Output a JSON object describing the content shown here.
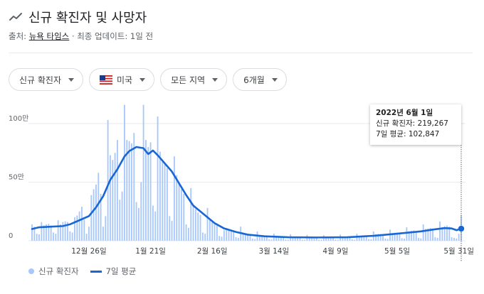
{
  "header": {
    "title": "신규 확진자 및 사망자",
    "source_prefix": "출처:",
    "source_name": "뉴욕 타임스",
    "source_suffix": " · 최종 업데이트: 1일 전"
  },
  "filters": [
    {
      "label": "신규 확진자"
    },
    {
      "label": "미국",
      "icon": "us-flag-icon"
    },
    {
      "label": "모든 지역"
    },
    {
      "label": "6개월"
    }
  ],
  "tooltip": {
    "date": "2022년 6월 1일",
    "cases": "신규 확진자: 219,267",
    "avg": "7일 평균: 102,847"
  },
  "legend": {
    "bars": "신규 확진자",
    "line": "7일 평균"
  },
  "colors": {
    "bar": "#a8c7fa",
    "line": "#1967d2",
    "grid": "#e8eaed"
  },
  "chart_data": {
    "type": "bar",
    "title": "신규 확진자 및 사망자",
    "y_ticks": [
      {
        "value": 0,
        "label": "0"
      },
      {
        "value": 500000,
        "label": "50만"
      },
      {
        "value": 1000000,
        "label": "100만"
      }
    ],
    "ylim": [
      0,
      1100000
    ],
    "x_range": [
      "2021-12-02",
      "2022-06-01"
    ],
    "x_ticks": [
      {
        "date": "2021-12-26",
        "label": "12월 26일"
      },
      {
        "date": "2022-01-21",
        "label": "1월 21일"
      },
      {
        "date": "2022-02-16",
        "label": "2월 16일"
      },
      {
        "date": "2022-03-14",
        "label": "3월 14일"
      },
      {
        "date": "2022-04-09",
        "label": "4월 9일"
      },
      {
        "date": "2022-05-05",
        "label": "5월 5일"
      },
      {
        "date": "2022-05-31",
        "label": "5월 31일"
      }
    ],
    "bar_series_name": "신규 확진자",
    "line_series_name": "7일 평균",
    "line_points": [
      [
        "2021-12-02",
        100000
      ],
      [
        "2021-12-05",
        115000
      ],
      [
        "2021-12-10",
        120000
      ],
      [
        "2021-12-15",
        125000
      ],
      [
        "2021-12-18",
        140000
      ],
      [
        "2021-12-22",
        175000
      ],
      [
        "2021-12-26",
        210000
      ],
      [
        "2021-12-29",
        285000
      ],
      [
        "2022-01-01",
        380000
      ],
      [
        "2022-01-04",
        520000
      ],
      [
        "2022-01-07",
        610000
      ],
      [
        "2022-01-10",
        720000
      ],
      [
        "2022-01-12",
        765000
      ],
      [
        "2022-01-15",
        800000
      ],
      [
        "2022-01-18",
        790000
      ],
      [
        "2022-01-20",
        740000
      ],
      [
        "2022-01-22",
        770000
      ],
      [
        "2022-01-24",
        730000
      ],
      [
        "2022-01-27",
        660000
      ],
      [
        "2022-01-30",
        590000
      ],
      [
        "2022-02-02",
        490000
      ],
      [
        "2022-02-05",
        390000
      ],
      [
        "2022-02-08",
        300000
      ],
      [
        "2022-02-11",
        250000
      ],
      [
        "2022-02-14",
        200000
      ],
      [
        "2022-02-17",
        150000
      ],
      [
        "2022-02-21",
        105000
      ],
      [
        "2022-02-26",
        75000
      ],
      [
        "2022-03-03",
        52000
      ],
      [
        "2022-03-10",
        38000
      ],
      [
        "2022-03-20",
        30000
      ],
      [
        "2022-04-01",
        28000
      ],
      [
        "2022-04-14",
        30000
      ],
      [
        "2022-04-25",
        42000
      ],
      [
        "2022-05-05",
        60000
      ],
      [
        "2022-05-15",
        80000
      ],
      [
        "2022-05-20",
        95000
      ],
      [
        "2022-05-25",
        108000
      ],
      [
        "2022-05-28",
        105000
      ],
      [
        "2022-05-30",
        90000
      ],
      [
        "2022-06-01",
        102847
      ]
    ],
    "bar_points": [
      [
        "2021-12-02",
        140000
      ],
      [
        "2021-12-03",
        120000
      ],
      [
        "2021-12-04",
        60000
      ],
      [
        "2021-12-05",
        55000
      ],
      [
        "2021-12-06",
        160000
      ],
      [
        "2021-12-07",
        130000
      ],
      [
        "2021-12-08",
        140000
      ],
      [
        "2021-12-09",
        145000
      ],
      [
        "2021-12-10",
        130000
      ],
      [
        "2021-12-11",
        70000
      ],
      [
        "2021-12-12",
        60000
      ],
      [
        "2021-12-13",
        175000
      ],
      [
        "2021-12-14",
        140000
      ],
      [
        "2021-12-15",
        160000
      ],
      [
        "2021-12-16",
        165000
      ],
      [
        "2021-12-17",
        160000
      ],
      [
        "2021-12-18",
        80000
      ],
      [
        "2021-12-19",
        70000
      ],
      [
        "2021-12-20",
        200000
      ],
      [
        "2021-12-21",
        215000
      ],
      [
        "2021-12-22",
        250000
      ],
      [
        "2021-12-23",
        290000
      ],
      [
        "2021-12-24",
        180000
      ],
      [
        "2021-12-25",
        60000
      ],
      [
        "2021-12-26",
        120000
      ],
      [
        "2021-12-27",
        390000
      ],
      [
        "2021-12-28",
        440000
      ],
      [
        "2021-12-29",
        480000
      ],
      [
        "2021-12-30",
        580000
      ],
      [
        "2021-12-31",
        400000
      ],
      [
        "2022-01-01",
        120000
      ],
      [
        "2022-01-02",
        210000
      ],
      [
        "2022-01-03",
        1030000
      ],
      [
        "2022-01-04",
        730000
      ],
      [
        "2022-01-05",
        690000
      ],
      [
        "2022-01-06",
        750000
      ],
      [
        "2022-01-07",
        860000
      ],
      [
        "2022-01-08",
        350000
      ],
      [
        "2022-01-09",
        420000
      ],
      [
        "2022-01-10",
        1160000
      ],
      [
        "2022-01-11",
        860000
      ],
      [
        "2022-01-12",
        850000
      ],
      [
        "2022-01-13",
        830000
      ],
      [
        "2022-01-14",
        920000
      ],
      [
        "2022-01-15",
        330000
      ],
      [
        "2022-01-16",
        280000
      ],
      [
        "2022-01-17",
        500000
      ],
      [
        "2022-01-18",
        1160000
      ],
      [
        "2022-01-19",
        860000
      ],
      [
        "2022-01-20",
        800000
      ],
      [
        "2022-01-21",
        840000
      ],
      [
        "2022-01-22",
        300000
      ],
      [
        "2022-01-23",
        250000
      ],
      [
        "2022-01-24",
        1060000
      ],
      [
        "2022-01-25",
        760000
      ],
      [
        "2022-01-26",
        690000
      ],
      [
        "2022-01-27",
        660000
      ],
      [
        "2022-01-28",
        620000
      ],
      [
        "2022-01-29",
        210000
      ],
      [
        "2022-01-30",
        170000
      ],
      [
        "2022-01-31",
        720000
      ],
      [
        "2022-02-01",
        560000
      ],
      [
        "2022-02-02",
        500000
      ],
      [
        "2022-02-03",
        440000
      ],
      [
        "2022-02-04",
        400000
      ],
      [
        "2022-02-05",
        140000
      ],
      [
        "2022-02-06",
        110000
      ],
      [
        "2022-02-07",
        450000
      ],
      [
        "2022-02-08",
        300000
      ],
      [
        "2022-02-09",
        270000
      ],
      [
        "2022-02-10",
        240000
      ],
      [
        "2022-02-11",
        220000
      ],
      [
        "2022-02-12",
        70000
      ],
      [
        "2022-02-13",
        60000
      ],
      [
        "2022-02-14",
        280000
      ],
      [
        "2022-02-15",
        180000
      ],
      [
        "2022-02-16",
        160000
      ],
      [
        "2022-02-17",
        140000
      ],
      [
        "2022-02-18",
        130000
      ],
      [
        "2022-02-19",
        40000
      ],
      [
        "2022-02-20",
        35000
      ],
      [
        "2022-02-21",
        90000
      ],
      [
        "2022-02-22",
        110000
      ],
      [
        "2022-02-23",
        95000
      ],
      [
        "2022-02-24",
        80000
      ],
      [
        "2022-02-25",
        75000
      ],
      [
        "2022-02-26",
        30000
      ],
      [
        "2022-02-27",
        25000
      ],
      [
        "2022-02-28",
        120000
      ],
      [
        "2022-03-01",
        70000
      ],
      [
        "2022-03-02",
        60000
      ],
      [
        "2022-03-03",
        55000
      ],
      [
        "2022-03-04",
        50000
      ],
      [
        "2022-03-05",
        18000
      ],
      [
        "2022-03-06",
        15000
      ],
      [
        "2022-03-07",
        80000
      ],
      [
        "2022-03-08",
        45000
      ],
      [
        "2022-03-09",
        40000
      ],
      [
        "2022-03-10",
        38000
      ],
      [
        "2022-03-11",
        36000
      ],
      [
        "2022-03-12",
        12000
      ],
      [
        "2022-03-13",
        10000
      ],
      [
        "2022-03-14",
        60000
      ],
      [
        "2022-03-15",
        35000
      ],
      [
        "2022-03-16",
        33000
      ],
      [
        "2022-03-17",
        32000
      ],
      [
        "2022-03-18",
        30000
      ],
      [
        "2022-03-19",
        10000
      ],
      [
        "2022-03-20",
        9000
      ],
      [
        "2022-03-21",
        55000
      ],
      [
        "2022-03-22",
        30000
      ],
      [
        "2022-03-23",
        29000
      ],
      [
        "2022-03-24",
        28000
      ],
      [
        "2022-03-25",
        27000
      ],
      [
        "2022-03-26",
        9000
      ],
      [
        "2022-03-27",
        8000
      ],
      [
        "2022-03-28",
        50000
      ],
      [
        "2022-03-29",
        29000
      ],
      [
        "2022-03-30",
        28000
      ],
      [
        "2022-03-31",
        27000
      ],
      [
        "2022-04-01",
        26000
      ],
      [
        "2022-04-02",
        9000
      ],
      [
        "2022-04-03",
        8000
      ],
      [
        "2022-04-04",
        48000
      ],
      [
        "2022-04-05",
        30000
      ],
      [
        "2022-04-06",
        30000
      ],
      [
        "2022-04-07",
        29000
      ],
      [
        "2022-04-08",
        28000
      ],
      [
        "2022-04-09",
        10000
      ],
      [
        "2022-04-10",
        9000
      ],
      [
        "2022-04-11",
        52000
      ],
      [
        "2022-04-12",
        33000
      ],
      [
        "2022-04-13",
        35000
      ],
      [
        "2022-04-14",
        34000
      ],
      [
        "2022-04-15",
        30000
      ],
      [
        "2022-04-16",
        12000
      ],
      [
        "2022-04-17",
        8000
      ],
      [
        "2022-04-18",
        60000
      ],
      [
        "2022-04-19",
        42000
      ],
      [
        "2022-04-20",
        45000
      ],
      [
        "2022-04-21",
        44000
      ],
      [
        "2022-04-22",
        40000
      ],
      [
        "2022-04-23",
        15000
      ],
      [
        "2022-04-24",
        12000
      ],
      [
        "2022-04-25",
        80000
      ],
      [
        "2022-04-26",
        55000
      ],
      [
        "2022-04-27",
        58000
      ],
      [
        "2022-04-28",
        57000
      ],
      [
        "2022-04-29",
        52000
      ],
      [
        "2022-04-30",
        18000
      ],
      [
        "2022-05-01",
        15000
      ],
      [
        "2022-05-02",
        95000
      ],
      [
        "2022-05-03",
        65000
      ],
      [
        "2022-05-04",
        68000
      ],
      [
        "2022-05-05",
        70000
      ],
      [
        "2022-05-06",
        65000
      ],
      [
        "2022-05-07",
        22000
      ],
      [
        "2022-05-08",
        18000
      ],
      [
        "2022-05-09",
        115000
      ],
      [
        "2022-05-10",
        80000
      ],
      [
        "2022-05-11",
        85000
      ],
      [
        "2022-05-12",
        88000
      ],
      [
        "2022-05-13",
        80000
      ],
      [
        "2022-05-14",
        25000
      ],
      [
        "2022-05-15",
        20000
      ],
      [
        "2022-05-16",
        140000
      ],
      [
        "2022-05-17",
        100000
      ],
      [
        "2022-05-18",
        105000
      ],
      [
        "2022-05-19",
        108000
      ],
      [
        "2022-05-20",
        100000
      ],
      [
        "2022-05-21",
        30000
      ],
      [
        "2022-05-22",
        25000
      ],
      [
        "2022-05-23",
        165000
      ],
      [
        "2022-05-24",
        115000
      ],
      [
        "2022-05-25",
        125000
      ],
      [
        "2022-05-26",
        130000
      ],
      [
        "2022-05-27",
        120000
      ],
      [
        "2022-05-28",
        30000
      ],
      [
        "2022-05-29",
        25000
      ],
      [
        "2022-05-30",
        20000
      ],
      [
        "2022-05-31",
        60000
      ],
      [
        "2022-06-01",
        219267
      ]
    ]
  }
}
